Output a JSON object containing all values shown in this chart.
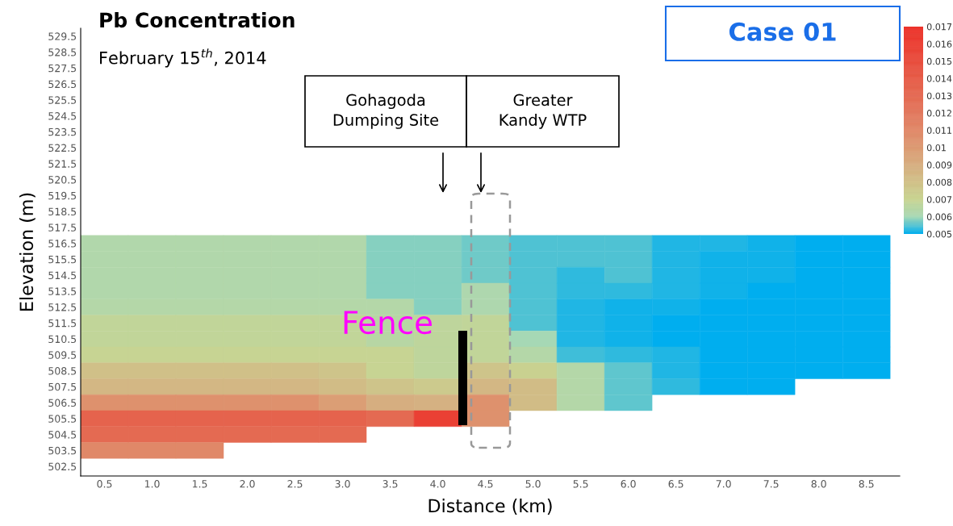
{
  "chart_data": {
    "type": "heatmap",
    "title": "Pb Concentration",
    "subtitle": "February 15$^{th}$, 2014",
    "xlabel": "Distance (km)",
    "ylabel": "Elevation (m)",
    "annotations": [
      "Case 01",
      "Gohagoda\nDumping Site",
      "Greater\nKandy WTP",
      "Fence"
    ],
    "categories": [
      "0.5",
      "1.0",
      "1.5",
      "2.0",
      "2.5",
      "3.0",
      "3.5",
      "4.0",
      "4.5",
      "5.0",
      "5.5",
      "6.0",
      "6.5",
      "7.0",
      "7.5",
      "8.0",
      "8.5"
    ],
    "y_categories": [
      "529.5",
      "528.5",
      "527.5",
      "526.5",
      "525.5",
      "524.5",
      "523.5",
      "522.5",
      "521.5",
      "520.5",
      "519.5",
      "518.5",
      "517.5",
      "516.5",
      "515.5",
      "514.5",
      "513.5",
      "512.5",
      "511.5",
      "510.5",
      "509.5",
      "508.5",
      "507.5",
      "506.5",
      "505.5",
      "504.5",
      "503.5",
      "502.5"
    ],
    "cells": [
      [
        null,
        null,
        null,
        null,
        null,
        null,
        null,
        null,
        null,
        null,
        null,
        null,
        null,
        null,
        null,
        null,
        null
      ],
      [
        null,
        null,
        null,
        null,
        null,
        null,
        null,
        null,
        null,
        null,
        null,
        null,
        null,
        null,
        null,
        null,
        null
      ],
      [
        null,
        null,
        null,
        null,
        null,
        null,
        null,
        null,
        null,
        null,
        null,
        null,
        null,
        null,
        null,
        null,
        null
      ],
      [
        null,
        null,
        null,
        null,
        null,
        null,
        null,
        null,
        null,
        null,
        null,
        null,
        null,
        null,
        null,
        null,
        null
      ],
      [
        null,
        null,
        null,
        null,
        null,
        null,
        null,
        null,
        null,
        null,
        null,
        null,
        null,
        null,
        null,
        null,
        null
      ],
      [
        null,
        null,
        null,
        null,
        null,
        null,
        null,
        null,
        null,
        null,
        null,
        null,
        null,
        null,
        null,
        null,
        null
      ],
      [
        null,
        null,
        null,
        null,
        null,
        null,
        null,
        null,
        null,
        null,
        null,
        null,
        null,
        null,
        null,
        null,
        null
      ],
      [
        null,
        null,
        null,
        null,
        null,
        null,
        null,
        null,
        null,
        null,
        null,
        null,
        null,
        null,
        null,
        null,
        null
      ],
      [
        null,
        null,
        null,
        null,
        null,
        null,
        null,
        null,
        null,
        null,
        null,
        null,
        null,
        null,
        null,
        null,
        null
      ],
      [
        null,
        null,
        null,
        null,
        null,
        null,
        null,
        null,
        null,
        null,
        null,
        null,
        null,
        null,
        null,
        null,
        null
      ],
      [
        null,
        null,
        null,
        null,
        null,
        null,
        null,
        null,
        null,
        null,
        null,
        null,
        null,
        null,
        null,
        null,
        null
      ],
      [
        null,
        null,
        null,
        null,
        null,
        null,
        null,
        null,
        null,
        null,
        null,
        null,
        null,
        null,
        null,
        null,
        null
      ],
      [
        null,
        null,
        null,
        null,
        null,
        null,
        null,
        null,
        null,
        null,
        null,
        null,
        null,
        null,
        null,
        null,
        null
      ],
      [
        0.0063,
        0.0063,
        0.0063,
        0.0063,
        0.0063,
        0.0063,
        0.0058,
        0.0058,
        0.0057,
        0.0055,
        0.0055,
        0.0055,
        0.0052,
        0.0052,
        0.0051,
        0.005,
        0.005
      ],
      [
        0.0063,
        0.0063,
        0.0063,
        0.0063,
        0.0063,
        0.0063,
        0.0058,
        0.0058,
        0.0057,
        0.0055,
        0.0055,
        0.0055,
        0.0052,
        0.0051,
        0.0051,
        0.005,
        0.005
      ],
      [
        0.0063,
        0.0063,
        0.0063,
        0.0063,
        0.0063,
        0.0063,
        0.0058,
        0.0058,
        0.0057,
        0.0055,
        0.0053,
        0.0055,
        0.0052,
        0.0051,
        0.0051,
        0.005,
        0.005
      ],
      [
        0.0063,
        0.0063,
        0.0063,
        0.0063,
        0.0063,
        0.0063,
        0.0058,
        0.0058,
        0.0062,
        0.0055,
        0.0053,
        0.0053,
        0.0052,
        0.0051,
        0.005,
        0.005,
        0.005
      ],
      [
        0.0064,
        0.0064,
        0.0064,
        0.0064,
        0.0064,
        0.0064,
        0.0064,
        0.0058,
        0.0062,
        0.0055,
        0.0052,
        0.0051,
        0.0051,
        0.005,
        0.005,
        0.005,
        0.005
      ],
      [
        0.0068,
        0.0068,
        0.0068,
        0.0068,
        0.0068,
        0.0068,
        0.0065,
        0.0067,
        0.0068,
        0.0055,
        0.0052,
        0.0051,
        0.005,
        0.005,
        0.005,
        0.005,
        0.005
      ],
      [
        0.0068,
        0.0068,
        0.0068,
        0.0068,
        0.0068,
        0.0068,
        0.0065,
        0.0067,
        0.0068,
        0.006,
        0.0052,
        0.0051,
        0.005,
        0.005,
        0.005,
        0.005,
        0.005
      ],
      [
        0.007,
        0.007,
        0.007,
        0.007,
        0.007,
        0.007,
        0.007,
        0.0067,
        0.0068,
        0.0064,
        0.0054,
        0.0053,
        0.0052,
        0.005,
        0.005,
        0.005,
        0.005
      ],
      [
        0.008,
        0.008,
        0.008,
        0.008,
        0.008,
        0.0078,
        0.007,
        0.0067,
        0.0078,
        0.0072,
        0.0064,
        0.0056,
        0.0052,
        0.005,
        0.005,
        0.005,
        0.005
      ],
      [
        0.0085,
        0.0085,
        0.0085,
        0.0085,
        0.0085,
        0.0082,
        0.0078,
        0.0075,
        0.0085,
        0.0082,
        0.0064,
        0.0056,
        0.0053,
        0.005,
        0.005,
        null,
        null
      ],
      [
        0.0105,
        0.0105,
        0.0105,
        0.0105,
        0.0105,
        0.0098,
        0.009,
        0.0088,
        0.0105,
        0.0082,
        0.0064,
        0.0056,
        null,
        null,
        null,
        null,
        null
      ],
      [
        0.0135,
        0.0135,
        0.0135,
        0.0135,
        0.0135,
        0.0135,
        0.013,
        0.016,
        0.0105,
        null,
        null,
        null,
        null,
        null,
        null,
        null,
        null
      ],
      [
        0.013,
        0.013,
        0.013,
        0.013,
        0.013,
        0.013,
        null,
        null,
        null,
        null,
        null,
        null,
        null,
        null,
        null,
        null,
        null
      ],
      [
        0.011,
        0.011,
        0.011,
        null,
        null,
        null,
        null,
        null,
        null,
        null,
        null,
        null,
        null,
        null,
        null,
        null,
        null
      ],
      [
        null,
        null,
        null,
        null,
        null,
        null,
        null,
        null,
        null,
        null,
        null,
        null,
        null,
        null,
        null,
        null,
        null
      ]
    ],
    "clim": [
      0.005,
      0.017
    ],
    "cticks": [
      0.017,
      0.016,
      0.015,
      0.014,
      0.013,
      0.012,
      0.011,
      0.01,
      0.009,
      0.008,
      0.007,
      0.006,
      0.005
    ],
    "colors": [
      "#ec322a",
      "#ea4034",
      "#e84e3e",
      "#e65c48",
      "#e46a52",
      "#e2785e",
      "#e08868",
      "#dc9a72",
      "#d6ae80",
      "#d0c088",
      "#c8d492",
      "#a8d8b4",
      "#00aeef"
    ]
  }
}
